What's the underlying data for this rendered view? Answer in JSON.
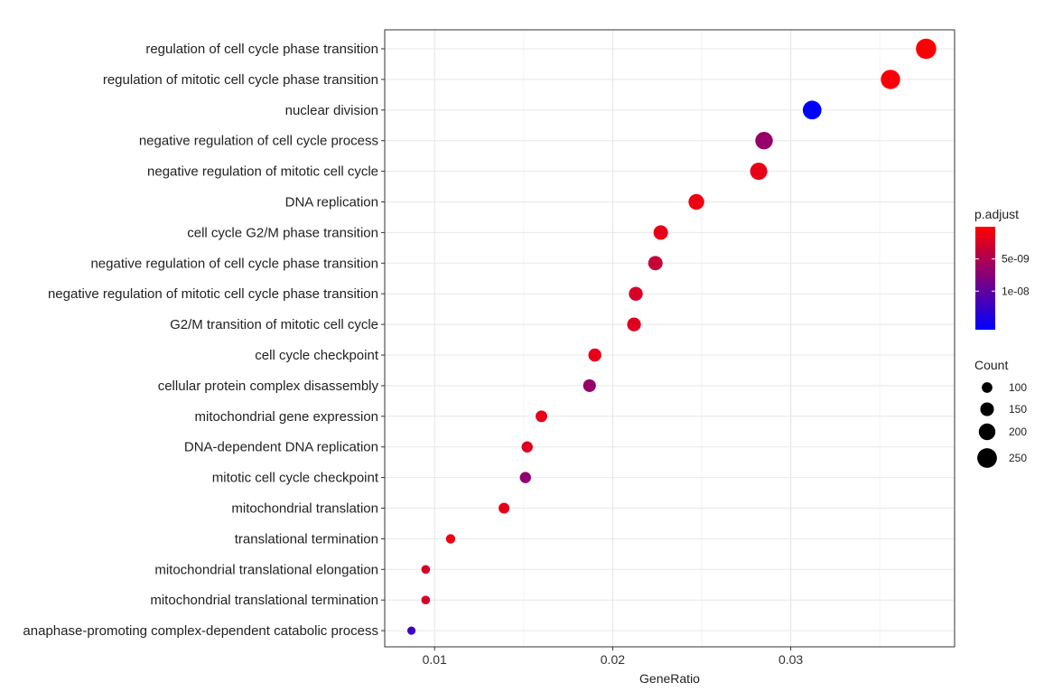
{
  "chart_data": {
    "type": "scatter",
    "xlabel": "GeneRatio",
    "xlim": [
      0.0072,
      0.0392
    ],
    "xticks": [
      0.01,
      0.02,
      0.03
    ],
    "xtick_labels": [
      "0.01",
      "0.02",
      "0.03"
    ],
    "grid": true,
    "points": [
      {
        "term": "regulation of cell cycle phase transition",
        "x": 0.0376,
        "count": 262,
        "p_adjust": 2e-10
      },
      {
        "term": "regulation of mitotic cell cycle phase transition",
        "x": 0.0356,
        "count": 245,
        "p_adjust": 4e-10
      },
      {
        "term": "nuclear division",
        "x": 0.0312,
        "count": 235,
        "p_adjust": 1.6e-08
      },
      {
        "term": "negative regulation of cell cycle process",
        "x": 0.0285,
        "count": 215,
        "p_adjust": 6.5e-09
      },
      {
        "term": "negative regulation of mitotic cell cycle",
        "x": 0.0282,
        "count": 210,
        "p_adjust": 1.5e-09
      },
      {
        "term": "DNA replication",
        "x": 0.0247,
        "count": 185,
        "p_adjust": 1e-09
      },
      {
        "term": "cell cycle G2/M phase transition",
        "x": 0.0227,
        "count": 165,
        "p_adjust": 1.5e-09
      },
      {
        "term": "negative regulation of cell cycle phase transition",
        "x": 0.0224,
        "count": 163,
        "p_adjust": 3.5e-09
      },
      {
        "term": "negative regulation of mitotic cell cycle phase transition",
        "x": 0.0213,
        "count": 155,
        "p_adjust": 2.5e-09
      },
      {
        "term": "G2/M transition of mitotic cell cycle",
        "x": 0.0212,
        "count": 153,
        "p_adjust": 2e-09
      },
      {
        "term": "cell cycle checkpoint",
        "x": 0.019,
        "count": 140,
        "p_adjust": 1.5e-09
      },
      {
        "term": "cellular protein complex disassembly",
        "x": 0.0187,
        "count": 136,
        "p_adjust": 6.5e-09
      },
      {
        "term": "mitochondrial gene expression",
        "x": 0.016,
        "count": 118,
        "p_adjust": 1.5e-09
      },
      {
        "term": "DNA-dependent DNA replication",
        "x": 0.0152,
        "count": 110,
        "p_adjust": 2e-09
      },
      {
        "term": "mitotic cell cycle checkpoint",
        "x": 0.0151,
        "count": 110,
        "p_adjust": 7e-09
      },
      {
        "term": "mitochondrial translation",
        "x": 0.0139,
        "count": 105,
        "p_adjust": 1.5e-09
      },
      {
        "term": "translational termination",
        "x": 0.0109,
        "count": 80,
        "p_adjust": 1e-09
      },
      {
        "term": "mitochondrial translational elongation",
        "x": 0.0095,
        "count": 70,
        "p_adjust": 2.5e-09
      },
      {
        "term": "mitochondrial translational termination",
        "x": 0.0095,
        "count": 70,
        "p_adjust": 2.5e-09
      },
      {
        "term": "anaphase-promoting complex-dependent catabolic process",
        "x": 0.0087,
        "count": 62,
        "p_adjust": 1.2e-08
      }
    ],
    "color_legend": {
      "title": "p.adjust",
      "low_color": "#ff0000",
      "high_color": "#0000ff",
      "range": [
        0,
        1.6e-08
      ],
      "ticks": [
        5e-09,
        1e-08
      ],
      "tick_labels": [
        "5e-09",
        "1e-08"
      ]
    },
    "size_legend": {
      "title": "Count",
      "values": [
        100,
        150,
        200,
        250
      ],
      "labels": [
        "100",
        "150",
        "200",
        "250"
      ]
    },
    "legend_position": "right"
  }
}
